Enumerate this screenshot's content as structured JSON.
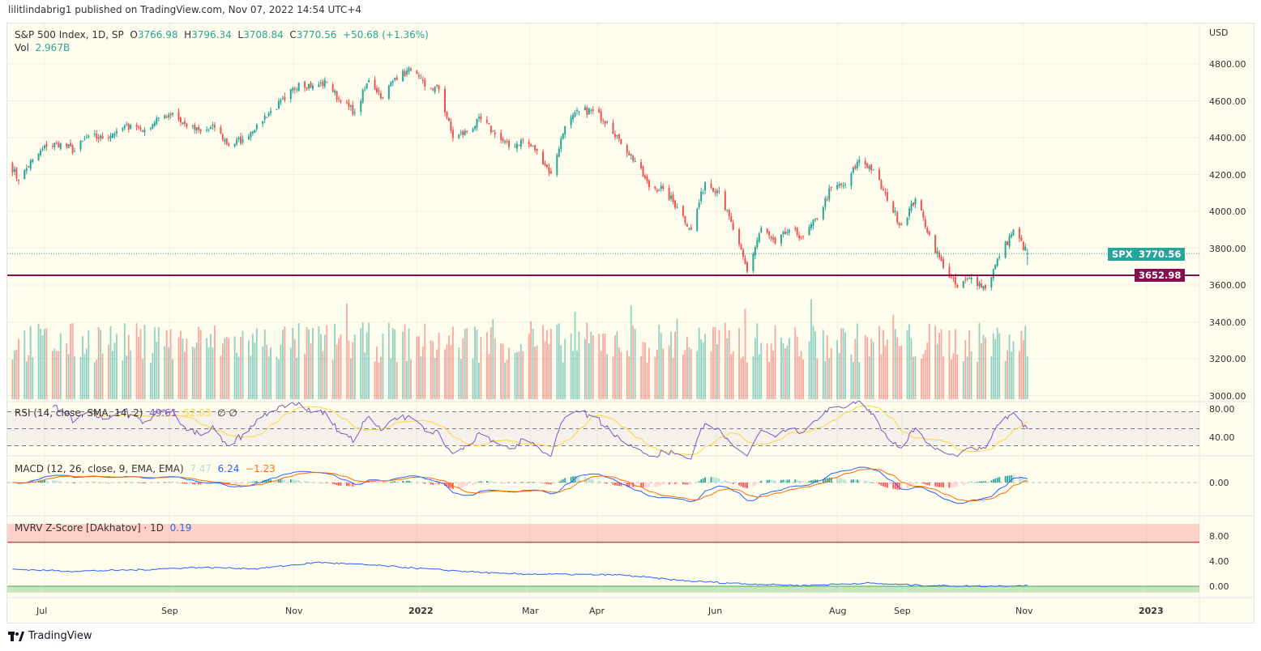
{
  "header": {
    "published": "lilitlindabrig1 published on TradingView.com, Nov 07, 2022 14:54 UTC+4"
  },
  "legend": {
    "symbol": "S&P 500 Index, 1D, SP",
    "o_label": "O",
    "o": "3766.98",
    "h_label": "H",
    "h": "3796.34",
    "l_label": "L",
    "l": "3708.84",
    "c_label": "C",
    "c": "3770.56",
    "change": "+50.68 (+1.36%)",
    "vol_label": "Vol",
    "vol": "2.967B"
  },
  "rsi_legend": {
    "title": "RSI (14, close, SMA, 14, 2)",
    "rsi": "49.61",
    "sma": "52.03",
    "v3": "∅",
    "v4": "∅"
  },
  "macd_legend": {
    "title": "MACD (12, 26, close, 9, EMA, EMA)",
    "hist": "7.47",
    "macd": "6.24",
    "signal": "−1.23"
  },
  "mvrv_legend": {
    "title": "MVRV Z-Score [DAkhatov] · 1D",
    "value": "0.19"
  },
  "price_axis": {
    "unit": "USD",
    "ticks": [
      "4800.00",
      "4600.00",
      "4400.00",
      "4200.00",
      "4000.00",
      "3800.00",
      "3600.00",
      "3400.00",
      "3200.00",
      "3000.00"
    ]
  },
  "rsi_axis": {
    "ticks": [
      "80.00",
      "40.00"
    ]
  },
  "macd_axis": {
    "ticks": [
      "0.00"
    ]
  },
  "mvrv_axis": {
    "ticks": [
      "8.00",
      "4.00",
      "0.00"
    ]
  },
  "time_axis": {
    "labels": [
      "Jul",
      "Sep",
      "Nov",
      "2022",
      "Mar",
      "Apr",
      "Jun",
      "Aug",
      "Sep",
      "Nov",
      "2023"
    ]
  },
  "tags": {
    "symbol": "SPX",
    "last": "3770.56",
    "hline": "3652.98"
  },
  "footer": {
    "brand": "TradingView"
  },
  "colors": {
    "up": "#26a69a",
    "down": "#ef5350",
    "hline": "#880e4f",
    "rsi": "#7e57c2",
    "rsi_sma": "#fdd835",
    "macd": "#2962ff",
    "signal": "#ff6d00",
    "mvrv": "#2962ff"
  },
  "chart_data": {
    "type": "candlestick",
    "title": "S&P 500 Index, 1D, SP",
    "ylabel": "USD",
    "ylim": [
      3000,
      4900
    ],
    "horizontal_line": 3652.98,
    "weekly_closes": [
      [
        "2021-06-14",
        4255
      ],
      [
        "2021-06-18",
        4166
      ],
      [
        "2021-06-25",
        4281
      ],
      [
        "2021-07-02",
        4352
      ],
      [
        "2021-07-09",
        4370
      ],
      [
        "2021-07-16",
        4327
      ],
      [
        "2021-07-23",
        4411
      ],
      [
        "2021-07-30",
        4395
      ],
      [
        "2021-08-06",
        4436
      ],
      [
        "2021-08-13",
        4468
      ],
      [
        "2021-08-20",
        4442
      ],
      [
        "2021-08-27",
        4509
      ],
      [
        "2021-09-03",
        4535
      ],
      [
        "2021-09-10",
        4459
      ],
      [
        "2021-09-17",
        4433
      ],
      [
        "2021-09-24",
        4455
      ],
      [
        "2021-10-01",
        4357
      ],
      [
        "2021-10-08",
        4391
      ],
      [
        "2021-10-15",
        4471
      ],
      [
        "2021-10-22",
        4545
      ],
      [
        "2021-10-29",
        4605
      ],
      [
        "2021-11-05",
        4697
      ],
      [
        "2021-11-12",
        4682
      ],
      [
        "2021-11-19",
        4698
      ],
      [
        "2021-11-26",
        4595
      ],
      [
        "2021-12-03",
        4538
      ],
      [
        "2021-12-10",
        4712
      ],
      [
        "2021-12-17",
        4620
      ],
      [
        "2021-12-23",
        4725
      ],
      [
        "2021-12-31",
        4766
      ],
      [
        "2022-01-07",
        4677
      ],
      [
        "2022-01-14",
        4662
      ],
      [
        "2022-01-21",
        4398
      ],
      [
        "2022-01-28",
        4432
      ],
      [
        "2022-02-04",
        4500
      ],
      [
        "2022-02-11",
        4419
      ],
      [
        "2022-02-18",
        4349
      ],
      [
        "2022-02-25",
        4385
      ],
      [
        "2022-03-04",
        4329
      ],
      [
        "2022-03-11",
        4204
      ],
      [
        "2022-03-18",
        4463
      ],
      [
        "2022-03-25",
        4543
      ],
      [
        "2022-04-01",
        4546
      ],
      [
        "2022-04-08",
        4488
      ],
      [
        "2022-04-14",
        4393
      ],
      [
        "2022-04-22",
        4272
      ],
      [
        "2022-04-29",
        4132
      ],
      [
        "2022-05-06",
        4123
      ],
      [
        "2022-05-13",
        4023
      ],
      [
        "2022-05-20",
        3901
      ],
      [
        "2022-05-27",
        4158
      ],
      [
        "2022-06-03",
        4109
      ],
      [
        "2022-06-10",
        3901
      ],
      [
        "2022-06-17",
        3675
      ],
      [
        "2022-06-24",
        3912
      ],
      [
        "2022-07-01",
        3825
      ],
      [
        "2022-07-08",
        3899
      ],
      [
        "2022-07-15",
        3863
      ],
      [
        "2022-07-22",
        3962
      ],
      [
        "2022-07-29",
        4130
      ],
      [
        "2022-08-05",
        4145
      ],
      [
        "2022-08-12",
        4280
      ],
      [
        "2022-08-19",
        4228
      ],
      [
        "2022-08-26",
        4058
      ],
      [
        "2022-09-02",
        3924
      ],
      [
        "2022-09-09",
        4067
      ],
      [
        "2022-09-16",
        3873
      ],
      [
        "2022-09-23",
        3693
      ],
      [
        "2022-09-30",
        3586
      ],
      [
        "2022-10-07",
        3640
      ],
      [
        "2022-10-14",
        3583
      ],
      [
        "2022-10-21",
        3753
      ],
      [
        "2022-10-28",
        3901
      ],
      [
        "2022-11-04",
        3770.56
      ]
    ],
    "last_candle": {
      "open": 3766.98,
      "high": 3796.34,
      "low": 3708.84,
      "close": 3770.56,
      "volume": "2.967B"
    },
    "rsi": {
      "period": 14,
      "sma": 14,
      "ylim": [
        20,
        90
      ],
      "bands": [
        70,
        50,
        30
      ]
    },
    "macd": {
      "fast": 12,
      "slow": 26,
      "signal": 9
    },
    "mvrv": {
      "ylim": [
        -1.5,
        10
      ],
      "thresholds": [
        7,
        0
      ],
      "monthly": [
        [
          "2021-06",
          2.7
        ],
        [
          "2021-07",
          2.4
        ],
        [
          "2021-08",
          2.6
        ],
        [
          "2021-09",
          3.0
        ],
        [
          "2021-10",
          2.8
        ],
        [
          "2021-11",
          3.8
        ],
        [
          "2021-12",
          3.3
        ],
        [
          "2022-01",
          2.6
        ],
        [
          "2022-02",
          2.0
        ],
        [
          "2022-03",
          1.9
        ],
        [
          "2022-04",
          1.8
        ],
        [
          "2022-05",
          0.9
        ],
        [
          "2022-06",
          0.4
        ],
        [
          "2022-07",
          0.1
        ],
        [
          "2022-08",
          0.5
        ],
        [
          "2022-09",
          0.1
        ],
        [
          "2022-10",
          0.0
        ],
        [
          "2022-11",
          0.19
        ]
      ]
    }
  }
}
